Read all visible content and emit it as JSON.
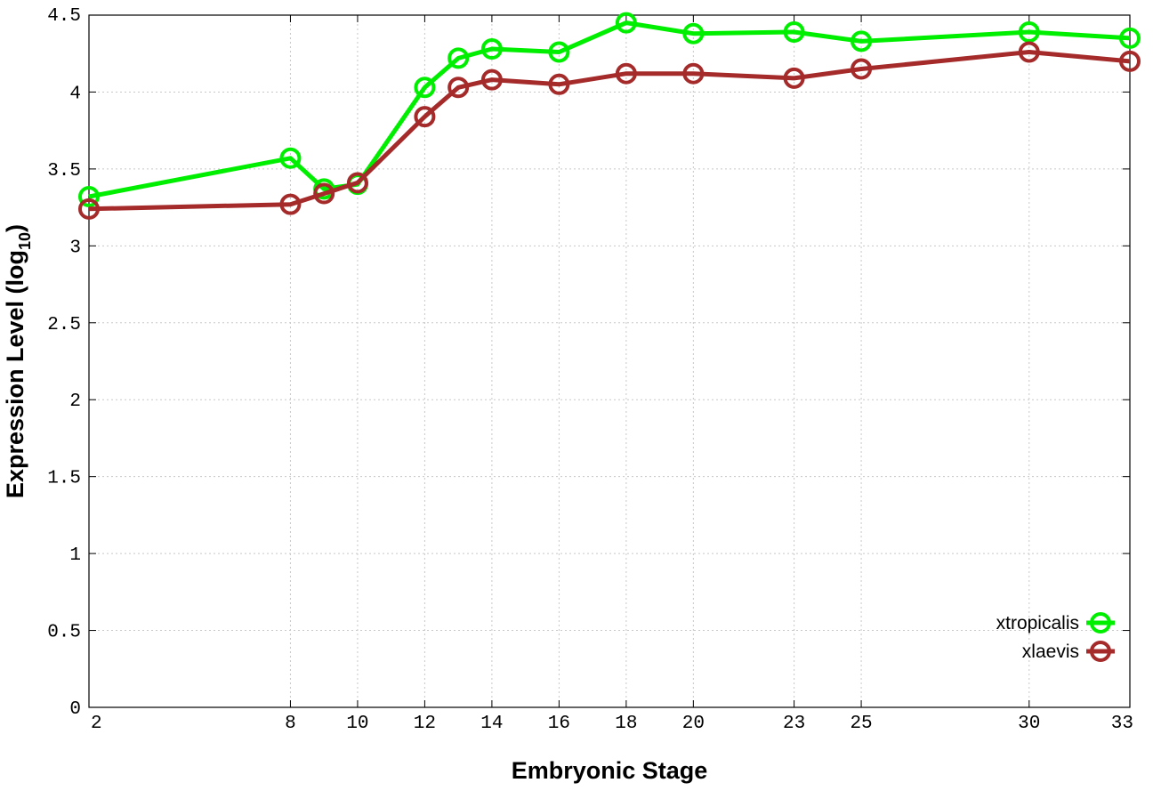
{
  "chart_data": {
    "type": "line",
    "title": "",
    "xlabel": "Embryonic Stage",
    "ylabel_main": "Expression Level (log",
    "ylabel_sub": "10",
    "ylabel_close": ")",
    "xlim": [
      2,
      33
    ],
    "ylim": [
      0,
      4.5
    ],
    "grid": true,
    "legend_position": "bottom-right",
    "x_ticks": [
      2,
      8,
      10,
      12,
      14,
      16,
      18,
      20,
      23,
      25,
      30,
      33
    ],
    "x_tick_labels": [
      "2",
      "8",
      "10",
      "12",
      "14",
      "16",
      "18",
      "20",
      "23",
      "25",
      "30",
      "33"
    ],
    "y_ticks": [
      0,
      0.5,
      1,
      1.5,
      2,
      2.5,
      3,
      3.5,
      4,
      4.5
    ],
    "y_tick_labels": [
      "0",
      "0.5",
      "1",
      "1.5",
      "2",
      "2.5",
      "3",
      "3.5",
      "4",
      "4.5"
    ],
    "x": [
      2,
      8,
      9,
      10,
      12,
      13,
      14,
      16,
      18,
      20,
      23,
      25,
      30,
      33
    ],
    "series": [
      {
        "name": "xtropicalis",
        "color": "#00ee00",
        "values": [
          3.32,
          3.57,
          3.37,
          3.4,
          4.03,
          4.22,
          4.28,
          4.26,
          4.45,
          4.38,
          4.39,
          4.33,
          4.39,
          4.35
        ]
      },
      {
        "name": "xlaevis",
        "color": "#a52a2a",
        "values": [
          3.24,
          3.27,
          3.34,
          3.41,
          3.84,
          4.03,
          4.08,
          4.05,
          4.12,
          4.12,
          4.09,
          4.15,
          4.26,
          4.2
        ]
      }
    ]
  }
}
